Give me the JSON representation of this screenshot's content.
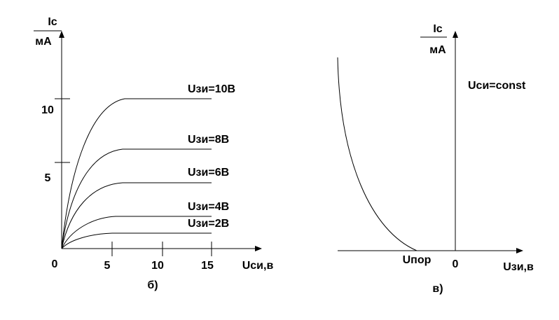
{
  "left_panel": {
    "y_label_top": "Ic",
    "y_label_bottom": "мА",
    "y_ticks": [
      "10",
      "5"
    ],
    "origin": "0",
    "x_ticks": [
      "5",
      "10",
      "15"
    ],
    "x_label": "Uси,в",
    "caption": "б)",
    "curves": [
      "Uзи=10В",
      "Uзи=8В",
      "Uзи=6В",
      "Uзи=4В",
      "Uзи=2В"
    ]
  },
  "right_panel": {
    "y_label_top": "Ic",
    "y_label_bottom": "мА",
    "condition": "Uси=const",
    "threshold": "Uпор",
    "origin": "0",
    "x_label": "Uзи,в",
    "caption": "в)"
  }
}
